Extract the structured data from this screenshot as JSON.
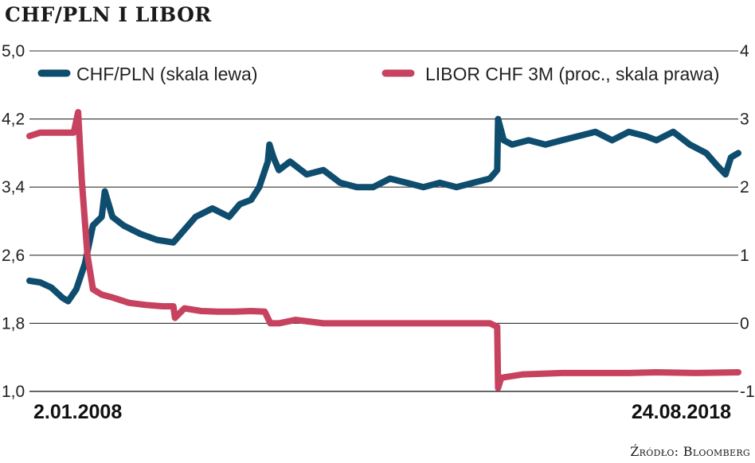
{
  "header": {
    "title": "CHF/PLN I LIBOR"
  },
  "footer": {
    "source": "Źródło: Bloomberg"
  },
  "colors": {
    "chf_pln": "#0e4d6e",
    "libor": "#c6425f",
    "grid": "#333333"
  },
  "chart_data": {
    "type": "line",
    "title": "CHF/PLN I LIBOR",
    "x_start_label": "2.01.2008",
    "x_end_label": "24.08.2018",
    "x_range": [
      "2008-01-02",
      "2018-08-24"
    ],
    "ylim_left": [
      1.0,
      5.0
    ],
    "ylim_right": [
      -1,
      4
    ],
    "yticks_left": [
      "5,0",
      "4,2",
      "3,4",
      "2,6",
      "1,8",
      "1,0"
    ],
    "yticks_right": [
      "4",
      "3",
      "2",
      "1",
      "0",
      "-1"
    ],
    "grid": true,
    "legend_placement": "top",
    "series": [
      {
        "name": "CHF/PLN (skala lewa)",
        "axis": "left",
        "x": [
          "2008-01-02",
          "2008-03-01",
          "2008-05-01",
          "2008-07-01",
          "2008-08-01",
          "2008-09-15",
          "2008-11-01",
          "2008-12-15",
          "2009-02-01",
          "2009-02-18",
          "2009-04-01",
          "2009-06-01",
          "2009-09-01",
          "2009-12-01",
          "2010-03-01",
          "2010-05-01",
          "2010-07-01",
          "2010-10-01",
          "2011-01-01",
          "2011-03-01",
          "2011-05-01",
          "2011-06-15",
          "2011-08-01",
          "2011-08-10",
          "2011-09-01",
          "2011-10-01",
          "2011-12-01",
          "2012-03-01",
          "2012-06-01",
          "2012-09-01",
          "2012-12-01",
          "2013-03-01",
          "2013-06-01",
          "2013-09-01",
          "2013-12-01",
          "2014-03-01",
          "2014-06-01",
          "2014-09-01",
          "2014-12-01",
          "2015-01-10",
          "2015-01-15",
          "2015-02-15",
          "2015-04-01",
          "2015-07-01",
          "2015-10-01",
          "2016-01-01",
          "2016-04-01",
          "2016-07-01",
          "2016-10-01",
          "2017-01-01",
          "2017-04-01",
          "2017-06-01",
          "2017-09-01",
          "2017-12-01",
          "2018-03-01",
          "2018-05-01",
          "2018-06-15",
          "2018-07-15",
          "2018-08-24"
        ],
        "values": [
          2.3,
          2.28,
          2.22,
          2.1,
          2.06,
          2.2,
          2.5,
          2.95,
          3.05,
          3.35,
          3.05,
          2.95,
          2.85,
          2.78,
          2.75,
          2.9,
          3.05,
          3.15,
          3.05,
          3.2,
          3.25,
          3.4,
          3.7,
          3.9,
          3.75,
          3.6,
          3.7,
          3.55,
          3.6,
          3.45,
          3.4,
          3.4,
          3.5,
          3.45,
          3.4,
          3.45,
          3.4,
          3.45,
          3.5,
          3.6,
          4.2,
          3.95,
          3.9,
          3.95,
          3.9,
          3.95,
          4.0,
          4.05,
          3.95,
          4.05,
          4.0,
          3.95,
          4.05,
          3.9,
          3.8,
          3.65,
          3.55,
          3.75,
          3.8
        ]
      },
      {
        "name": "LIBOR CHF 3M (proc., skala prawa)",
        "axis": "right",
        "x": [
          "2008-01-02",
          "2008-03-01",
          "2008-06-01",
          "2008-09-01",
          "2008-09-25",
          "2008-10-15",
          "2008-11-15",
          "2008-12-15",
          "2009-02-01",
          "2009-04-01",
          "2009-07-01",
          "2009-10-01",
          "2010-01-01",
          "2010-03-01",
          "2010-03-10",
          "2010-05-01",
          "2010-08-01",
          "2010-11-01",
          "2011-02-01",
          "2011-05-01",
          "2011-07-15",
          "2011-08-15",
          "2011-10-01",
          "2012-01-01",
          "2012-06-01",
          "2012-12-01",
          "2013-06-01",
          "2013-12-01",
          "2014-06-01",
          "2014-12-01",
          "2015-01-10",
          "2015-01-15",
          "2015-02-01",
          "2015-06-01",
          "2016-01-01",
          "2016-06-01",
          "2017-01-01",
          "2017-06-01",
          "2018-01-01",
          "2018-08-24"
        ],
        "values": [
          2.75,
          2.8,
          2.8,
          2.8,
          3.1,
          2.1,
          1.0,
          0.5,
          0.42,
          0.38,
          0.3,
          0.27,
          0.25,
          0.25,
          0.08,
          0.22,
          0.18,
          0.17,
          0.17,
          0.18,
          0.17,
          0.0,
          0.0,
          0.05,
          0.0,
          0.0,
          0.0,
          0.0,
          0.0,
          0.0,
          -0.05,
          -0.95,
          -0.8,
          -0.75,
          -0.73,
          -0.73,
          -0.73,
          -0.72,
          -0.73,
          -0.72
        ]
      }
    ]
  }
}
